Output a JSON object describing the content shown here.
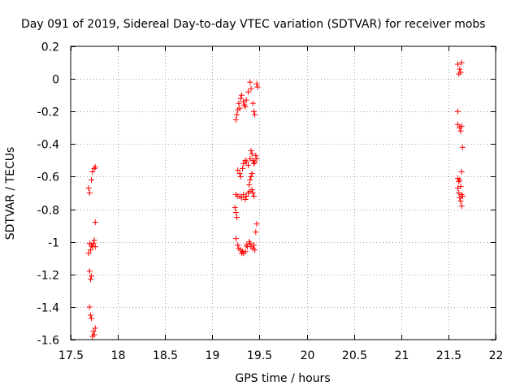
{
  "chart_data": {
    "type": "scatter",
    "title": "Day 091 of 2019, Sidereal Day-to-day VTEC variation (SDTVAR) for receiver mobs",
    "xlabel": "GPS time / hours",
    "ylabel": "SDTVAR / TECUs",
    "xlim": [
      17.5,
      22
    ],
    "ylim": [
      -1.6,
      0.2
    ],
    "xticks": [
      "17.5",
      "18",
      "18.5",
      "19",
      "19.5",
      "20",
      "20.5",
      "21",
      "21.5",
      "22"
    ],
    "yticks": [
      "0.2",
      "0",
      "-0.2",
      "-0.4",
      "-0.6",
      "-0.8",
      "-1",
      "-1.2",
      "-1.4",
      "-1.6"
    ],
    "grid": true,
    "marker": "+",
    "color": "#ff0000",
    "series": [
      {
        "name": "SDTVAR",
        "points": [
          [
            17.69,
            -0.67
          ],
          [
            17.7,
            -0.7
          ],
          [
            17.72,
            -0.62
          ],
          [
            17.73,
            -0.57
          ],
          [
            17.75,
            -0.55
          ],
          [
            17.76,
            -0.54
          ],
          [
            17.76,
            -0.88
          ],
          [
            17.7,
            -1.01
          ],
          [
            17.72,
            -1.02
          ],
          [
            17.73,
            -1.03
          ],
          [
            17.74,
            -1.01
          ],
          [
            17.75,
            -0.99
          ],
          [
            17.76,
            -1.03
          ],
          [
            17.71,
            -1.05
          ],
          [
            17.69,
            -1.07
          ],
          [
            17.7,
            -1.18
          ],
          [
            17.71,
            -1.23
          ],
          [
            17.72,
            -1.21
          ],
          [
            17.7,
            -1.4
          ],
          [
            17.71,
            -1.45
          ],
          [
            17.72,
            -1.47
          ],
          [
            17.74,
            -1.55
          ],
          [
            17.75,
            -1.57
          ],
          [
            17.76,
            -1.53
          ],
          [
            17.73,
            -1.58
          ],
          [
            19.25,
            -0.25
          ],
          [
            19.26,
            -0.22
          ],
          [
            19.27,
            -0.19
          ],
          [
            19.28,
            -0.15
          ],
          [
            19.3,
            -0.12
          ],
          [
            19.31,
            -0.1
          ],
          [
            19.33,
            -0.14
          ],
          [
            19.34,
            -0.16
          ],
          [
            19.36,
            -0.13
          ],
          [
            19.38,
            -0.08
          ],
          [
            19.4,
            -0.02
          ],
          [
            19.41,
            -0.06
          ],
          [
            19.43,
            -0.15
          ],
          [
            19.44,
            -0.2
          ],
          [
            19.45,
            -0.22
          ],
          [
            19.47,
            -0.03
          ],
          [
            19.48,
            -0.05
          ],
          [
            19.29,
            -0.18
          ],
          [
            19.35,
            -0.17
          ],
          [
            19.27,
            -0.56
          ],
          [
            19.29,
            -0.58
          ],
          [
            19.3,
            -0.6
          ],
          [
            19.32,
            -0.55
          ],
          [
            19.33,
            -0.52
          ],
          [
            19.35,
            -0.5
          ],
          [
            19.36,
            -0.51
          ],
          [
            19.38,
            -0.53
          ],
          [
            19.4,
            -0.49
          ],
          [
            19.41,
            -0.44
          ],
          [
            19.42,
            -0.46
          ],
          [
            19.43,
            -0.5
          ],
          [
            19.44,
            -0.52
          ],
          [
            19.46,
            -0.47
          ],
          [
            19.47,
            -0.49
          ],
          [
            19.42,
            -0.58
          ],
          [
            19.41,
            -0.6
          ],
          [
            19.4,
            -0.62
          ],
          [
            19.39,
            -0.65
          ],
          [
            19.25,
            -0.71
          ],
          [
            19.27,
            -0.72
          ],
          [
            19.29,
            -0.72
          ],
          [
            19.31,
            -0.73
          ],
          [
            19.33,
            -0.71
          ],
          [
            19.35,
            -0.74
          ],
          [
            19.36,
            -0.72
          ],
          [
            19.38,
            -0.7
          ],
          [
            19.4,
            -0.69
          ],
          [
            19.42,
            -0.68
          ],
          [
            19.43,
            -0.7
          ],
          [
            19.44,
            -0.72
          ],
          [
            19.24,
            -0.79
          ],
          [
            19.25,
            -0.82
          ],
          [
            19.26,
            -0.85
          ],
          [
            19.45,
            -0.51
          ],
          [
            19.47,
            -0.89
          ],
          [
            19.46,
            -0.94
          ],
          [
            19.25,
            -0.98
          ],
          [
            19.27,
            -1.02
          ],
          [
            19.28,
            -1.04
          ],
          [
            19.3,
            -1.05
          ],
          [
            19.31,
            -1.07
          ],
          [
            19.33,
            -1.07
          ],
          [
            19.35,
            -1.06
          ],
          [
            19.37,
            -1.03
          ],
          [
            19.39,
            -1.0
          ],
          [
            19.4,
            -1.01
          ],
          [
            19.41,
            -1.03
          ],
          [
            19.43,
            -1.04
          ],
          [
            19.44,
            -1.02
          ],
          [
            19.45,
            -1.05
          ],
          [
            19.32,
            -1.06
          ],
          [
            19.36,
            -1.02
          ],
          [
            21.6,
            0.09
          ],
          [
            21.62,
            0.06
          ],
          [
            21.63,
            0.04
          ],
          [
            21.61,
            0.03
          ],
          [
            21.64,
            0.1
          ],
          [
            21.6,
            -0.2
          ],
          [
            21.6,
            -0.28
          ],
          [
            21.62,
            -0.3
          ],
          [
            21.63,
            -0.32
          ],
          [
            21.64,
            -0.29
          ],
          [
            21.65,
            -0.42
          ],
          [
            21.64,
            -0.57
          ],
          [
            21.6,
            -0.61
          ],
          [
            21.61,
            -0.63
          ],
          [
            21.62,
            -0.62
          ],
          [
            21.63,
            -0.66
          ],
          [
            21.61,
            -0.7
          ],
          [
            21.62,
            -0.73
          ],
          [
            21.63,
            -0.75
          ],
          [
            21.64,
            -0.71
          ],
          [
            21.65,
            -0.72
          ],
          [
            21.6,
            -0.67
          ],
          [
            21.64,
            -0.78
          ]
        ]
      }
    ]
  }
}
